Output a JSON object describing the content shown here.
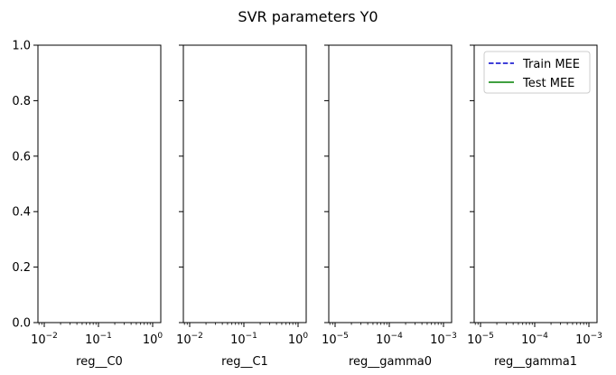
{
  "chart_data": {
    "type": "line",
    "title": "SVR parameters Y0",
    "ylim": [
      0,
      1
    ],
    "yticks": [
      "0.0",
      "0.2",
      "0.4",
      "0.6",
      "0.8",
      "1.0"
    ],
    "grid": false,
    "legend": {
      "placement": "top-right of last panel",
      "entries": [
        {
          "label": "Train MEE",
          "color": "#0000cc",
          "style": "dashed"
        },
        {
          "label": "Test MEE",
          "color": "#008000",
          "style": "solid"
        }
      ]
    },
    "panels": [
      {
        "xlabel": "reg__C0",
        "xscale": "log",
        "xticks": [
          {
            "base": "10",
            "exp": "−2"
          },
          {
            "base": "10",
            "exp": "−1"
          },
          {
            "base": "10",
            "exp": "0"
          }
        ],
        "series": []
      },
      {
        "xlabel": "reg__C1",
        "xscale": "log",
        "xticks": [
          {
            "base": "10",
            "exp": "−2"
          },
          {
            "base": "10",
            "exp": "−1"
          },
          {
            "base": "10",
            "exp": "0"
          }
        ],
        "series": []
      },
      {
        "xlabel": "reg__gamma0",
        "xscale": "log",
        "xticks": [
          {
            "base": "10",
            "exp": "−5"
          },
          {
            "base": "10",
            "exp": "−4"
          },
          {
            "base": "10",
            "exp": "−3"
          }
        ],
        "series": []
      },
      {
        "xlabel": "reg__gamma1",
        "xscale": "log",
        "xticks": [
          {
            "base": "10",
            "exp": "−5"
          },
          {
            "base": "10",
            "exp": "−4"
          },
          {
            "base": "10",
            "exp": "−3"
          }
        ],
        "series": []
      }
    ]
  }
}
